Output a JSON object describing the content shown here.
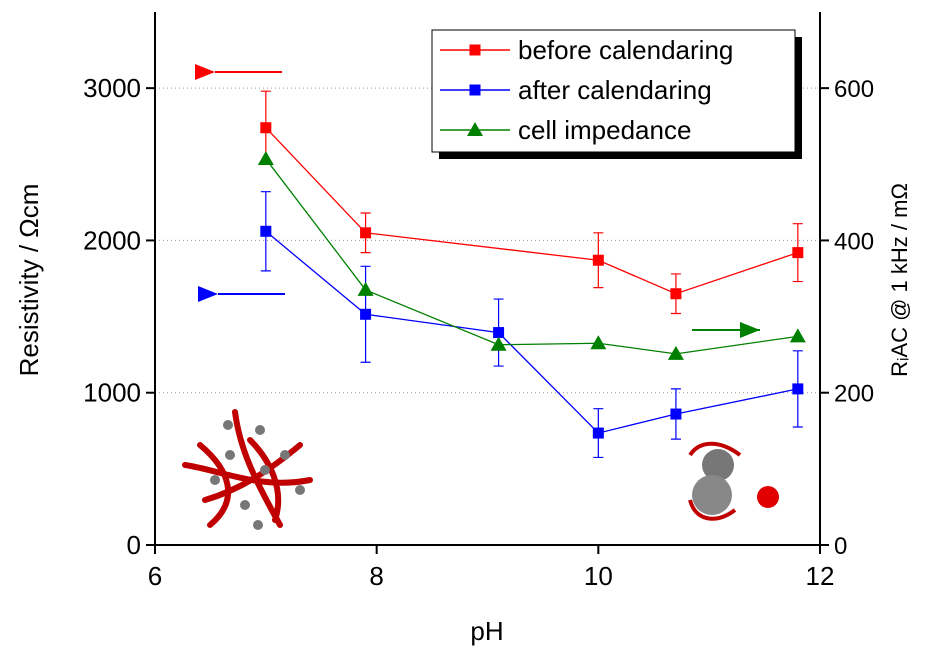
{
  "chart_data": {
    "type": "line",
    "x_label": "pH",
    "y_label": "Resistivity / Ωcm",
    "y2_label": "RᵢAC @ 1 kHz / mΩ",
    "xlim": [
      6,
      12
    ],
    "xticks": [
      6,
      8,
      10,
      12
    ],
    "ylim": [
      0,
      3500
    ],
    "yticks": [
      0,
      1000,
      2000,
      3000
    ],
    "y2lim": [
      0,
      700
    ],
    "y2ticks": [
      0,
      200,
      400,
      600
    ],
    "grid": true,
    "legend": "upper right",
    "series": [
      {
        "name": "before calendaring",
        "color": "#ff0000",
        "marker": "square",
        "x": [
          7,
          7.9,
          10,
          10.7,
          11.8
        ],
        "values": [
          2740,
          2050,
          1870,
          1650,
          1920
        ],
        "errors": [
          240,
          130,
          180,
          130,
          190
        ]
      },
      {
        "name": "after calendaring",
        "color": "#0000ff",
        "marker": "square",
        "x": [
          7,
          7.9,
          9.1,
          10,
          10.7,
          11.8
        ],
        "values": [
          2060,
          1515,
          1395,
          735,
          860,
          1025
        ],
        "errors": [
          260,
          315,
          220,
          160,
          165,
          250
        ]
      },
      {
        "name": "cell impedance",
        "color": "#008000",
        "marker": "triangle",
        "axis": "y2",
        "x": [
          7,
          7.9,
          9.1,
          10,
          10.7,
          11.8
        ],
        "values": [
          507,
          335,
          263,
          265,
          251,
          274
        ]
      }
    ]
  }
}
